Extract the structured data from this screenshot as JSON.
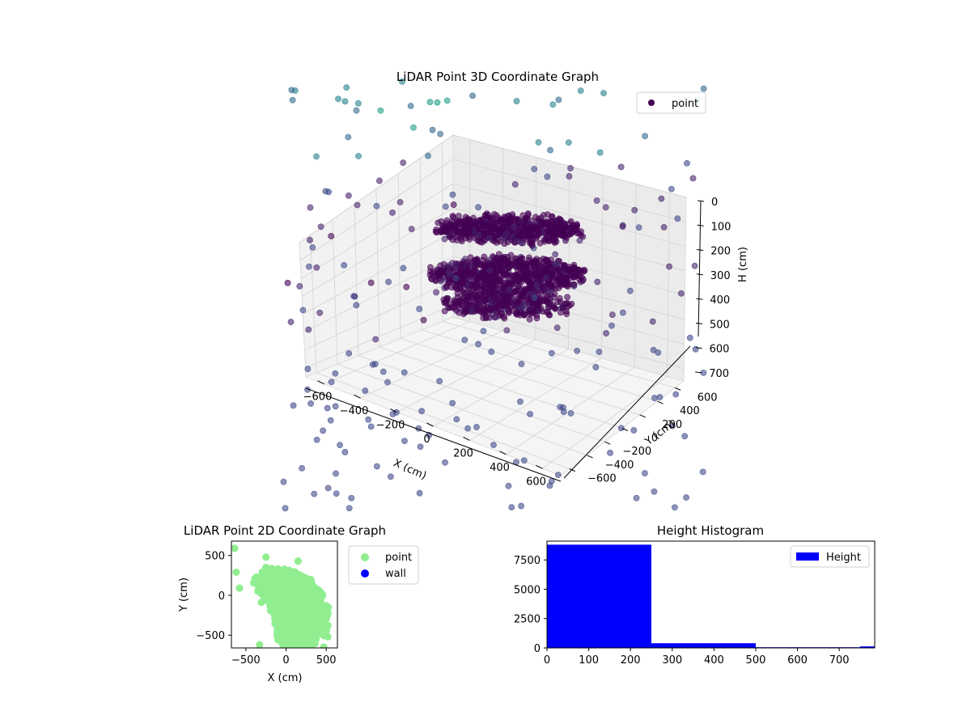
{
  "chart_data": [
    {
      "type": "scatter",
      "projection": "3d",
      "title": "LiDAR Point 3D Coordinate Graph",
      "xlabel": "X (cm)",
      "ylabel": "Y (cm)",
      "zlabel": "H (cm)",
      "xlim": [
        -700,
        700
      ],
      "ylim": [
        -700,
        700
      ],
      "zlim": [
        750,
        0
      ],
      "xticks": [
        "−600",
        "−400",
        "−200",
        "0",
        "200",
        "400",
        "600"
      ],
      "yticks": [
        "−600",
        "−400",
        "−200",
        "0",
        "200",
        "400",
        "600"
      ],
      "zticks": [
        "0",
        "100",
        "200",
        "300",
        "400",
        "500",
        "600",
        "700"
      ],
      "legend": {
        "placement": "top-right",
        "entries": [
          {
            "label": "point",
            "color": "#440154"
          }
        ]
      },
      "colormap": "viridis",
      "grid": true
    },
    {
      "type": "scatter",
      "title": "LiDAR Point 2D Coordinate Graph",
      "xlabel": "X (cm)",
      "ylabel": "Y (cm)",
      "xlim": [
        -680,
        640
      ],
      "ylim": [
        -660,
        680
      ],
      "xticks": [
        "−500",
        "0",
        "500"
      ],
      "yticks": [
        "500",
        "0",
        "−500"
      ],
      "series": [
        {
          "name": "point",
          "color": "#90ee90"
        },
        {
          "name": "wall",
          "color": "#0000ff"
        }
      ],
      "legend": {
        "placement": "outside-right"
      }
    },
    {
      "type": "bar",
      "title": "Height Histogram",
      "bins": [
        {
          "from": 0,
          "to": 250,
          "value": 8800
        },
        {
          "from": 250,
          "to": 500,
          "value": 400
        },
        {
          "from": 500,
          "to": 750,
          "value": 60
        },
        {
          "from": 750,
          "to": 1000,
          "value": 130
        }
      ],
      "xlim": [
        0,
        785
      ],
      "ylim": [
        0,
        9100
      ],
      "xticks": [
        "0",
        "100",
        "200",
        "300",
        "400",
        "500",
        "600",
        "700"
      ],
      "yticks": [
        "0",
        "2500",
        "5000",
        "7500"
      ],
      "series": [
        {
          "name": "Height",
          "color": "#0000ff"
        }
      ],
      "legend": {
        "placement": "top-right"
      }
    }
  ]
}
